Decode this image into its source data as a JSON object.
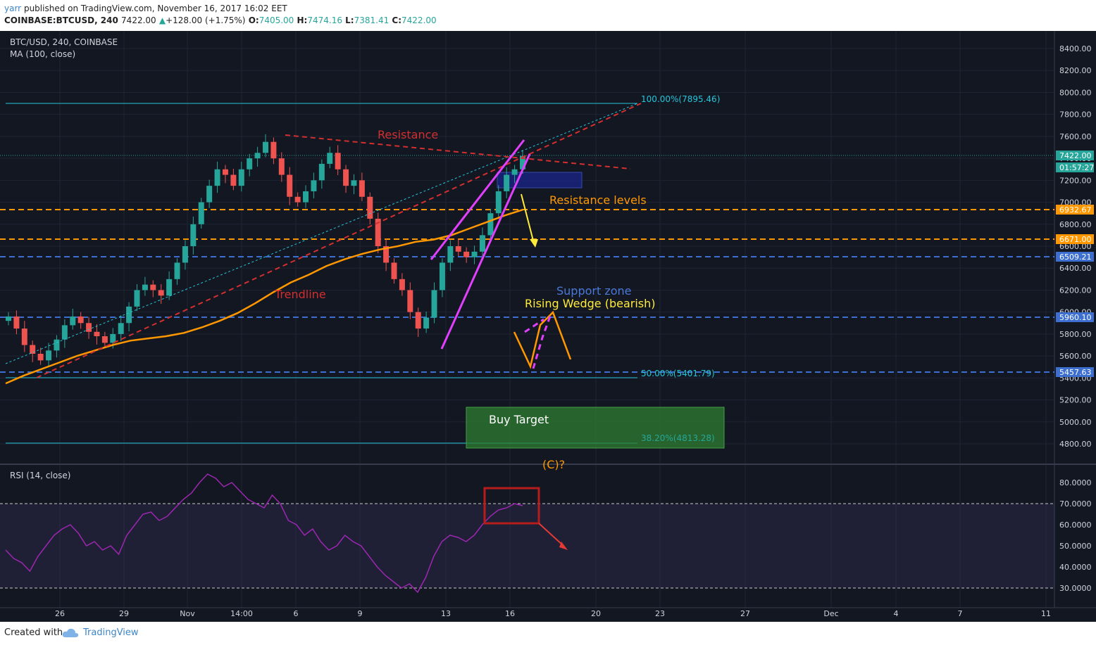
{
  "header": {
    "author": "yarr",
    "published": "published on TradingView.com, November 16, 2017 16:02 EET",
    "symbol": "COINBASE:BTCUSD, 240",
    "last": "7422.00",
    "change": "+128.00 (+1.75%)",
    "o_label": "O:",
    "o_value": "7405.00",
    "h_label": "H:",
    "h_value": "7474.16",
    "l_label": "L:",
    "l_value": "7381.41",
    "c_label": "C:",
    "c_value": "7422.00"
  },
  "main_pane": {
    "title": "BTC/USD, 240, COINBASE",
    "indicator": "MA (100, close)"
  },
  "rsi_pane": {
    "title": "RSI (14, close)"
  },
  "footer": {
    "created_with": "Created with",
    "brand": "TradingView"
  },
  "colors": {
    "background": "#131722",
    "candle_up": "#26a69a",
    "candle_down": "#ef5350",
    "ma": "#ff9800",
    "rsi": "#9c27b0",
    "wedge": "#e040fb",
    "trendline": "#d32f2f",
    "fib": "#26c6da"
  },
  "chart_data": [
    {
      "type": "candlestick",
      "title": "BTC/USD, 240, COINBASE",
      "y_axis": {
        "ticks": [
          "8400.00",
          "8200.00",
          "8000.00",
          "7800.00",
          "7600.00",
          "7400.00",
          "7200.00",
          "7000.00",
          "6800.00",
          "6600.00",
          "6400.00",
          "6200.00",
          "6000.00",
          "5800.00",
          "5600.00",
          "5400.00",
          "5200.00",
          "5000.00",
          "4800.00"
        ],
        "range": [
          4700,
          8450
        ]
      },
      "x_axis": {
        "ticks": [
          "26",
          "29",
          "Nov",
          "14:00",
          "6",
          "9",
          "13",
          "16",
          "20",
          "23",
          "27",
          "Dec",
          "4",
          "7",
          "11"
        ]
      },
      "price_labels": [
        {
          "value": "7422.00",
          "color": "#26a69a"
        },
        {
          "value": "01:57:27",
          "color": "#26a69a"
        },
        {
          "value": "6932.67",
          "color": "#ff9800"
        },
        {
          "value": "6671.00",
          "color": "#ff9800"
        },
        {
          "value": "6509.21",
          "color": "#3d6fd1"
        },
        {
          "value": "5960.10",
          "color": "#3d6fd1"
        },
        {
          "value": "5457.63",
          "color": "#3d6fd1"
        }
      ],
      "close_series": [
        5960,
        5850,
        5700,
        5620,
        5560,
        5650,
        5750,
        5880,
        5960,
        5900,
        5820,
        5780,
        5720,
        5800,
        5900,
        6050,
        6200,
        6250,
        6200,
        6150,
        6300,
        6450,
        6600,
        6800,
        7000,
        7150,
        7300,
        7250,
        7150,
        7300,
        7400,
        7450,
        7550,
        7400,
        7250,
        7050,
        7000,
        7100,
        7200,
        7350,
        7450,
        7300,
        7150,
        7200,
        7050,
        6850,
        6600,
        6450,
        6300,
        6200,
        6000,
        5850,
        5950,
        6200,
        6450,
        6600,
        6550,
        6500,
        6550,
        6700,
        6900,
        7100,
        7250,
        7300,
        7422
      ],
      "ma_series": [
        5350,
        5420,
        5480,
        5540,
        5600,
        5650,
        5700,
        5740,
        5760,
        5780,
        5810,
        5860,
        5920,
        5990,
        6080,
        6180,
        6270,
        6340,
        6420,
        6480,
        6530,
        6570,
        6600,
        6640,
        6660,
        6700,
        6760,
        6820,
        6880,
        6932
      ],
      "annotations": [
        {
          "text": "Resistance",
          "color": "#d32f2f"
        },
        {
          "text": "Trendline",
          "color": "#d32f2f"
        },
        {
          "text": "Resistance levels",
          "color": "#ff9800"
        },
        {
          "text": "Support zone",
          "color": "#4a78d8"
        },
        {
          "text": "Rising Wedge (bearish)",
          "color": "#ffeb3b"
        },
        {
          "text": "Buy Target",
          "color": "#ffffff"
        },
        {
          "text": "(C)?",
          "color": "#ff9800"
        },
        {
          "text": "100.00%(7895.46)",
          "color": "#26c6da"
        },
        {
          "text": "50.00%(5401.79)",
          "color": "#26c6da"
        },
        {
          "text": "38.20%(4813.28)",
          "color": "#26a69a"
        }
      ]
    },
    {
      "type": "line",
      "title": "RSI (14, close)",
      "y_axis": {
        "ticks": [
          "80.0000",
          "70.0000",
          "60.0000",
          "50.0000",
          "40.0000",
          "30.0000"
        ],
        "range": [
          25,
          85
        ]
      },
      "bands": [
        30,
        70
      ],
      "values": [
        48,
        44,
        42,
        38,
        45,
        50,
        55,
        58,
        60,
        56,
        50,
        52,
        48,
        50,
        46,
        55,
        60,
        65,
        66,
        62,
        64,
        68,
        72,
        75,
        80,
        84,
        82,
        78,
        80,
        76,
        72,
        70,
        68,
        74,
        70,
        62,
        60,
        55,
        58,
        52,
        48,
        50,
        55,
        52,
        50,
        45,
        40,
        36,
        33,
        30,
        32,
        28,
        35,
        45,
        52,
        55,
        54,
        52,
        55,
        60,
        64,
        67,
        68,
        70,
        69
      ]
    }
  ]
}
